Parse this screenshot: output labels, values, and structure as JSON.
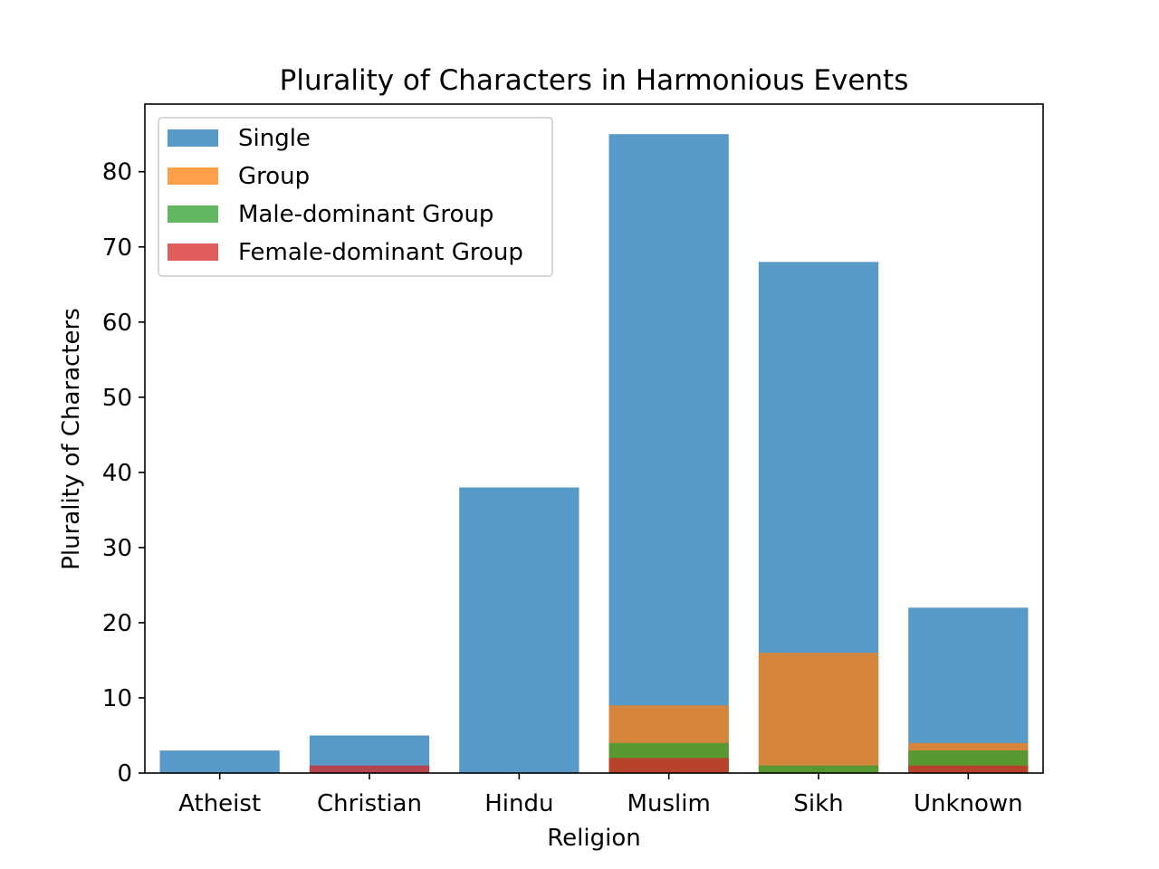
{
  "chart_data": {
    "type": "bar",
    "title": "Plurality of Characters in Harmonious Events",
    "xlabel": "Religion",
    "ylabel": "Plurality of Characters",
    "categories": [
      "Atheist",
      "Christian",
      "Hindu",
      "Muslim",
      "Sikh",
      "Unknown"
    ],
    "ylim": [
      0,
      89
    ],
    "yticks": [
      0,
      10,
      20,
      30,
      40,
      50,
      60,
      70,
      80
    ],
    "grid": false,
    "legend": "top-left",
    "bar_mode": "overlaid",
    "series": [
      {
        "name": "Single",
        "color": "#1f77b4",
        "values": [
          3,
          5,
          38,
          85,
          68,
          22
        ]
      },
      {
        "name": "Group",
        "color": "#ff7f0e",
        "values": [
          0,
          0,
          0,
          9,
          16,
          4
        ]
      },
      {
        "name": "Male-dominant Group",
        "color": "#2ca02c",
        "values": [
          0,
          0,
          0,
          4,
          1,
          3
        ]
      },
      {
        "name": "Female-dominant Group",
        "color": "#d62728",
        "values": [
          0,
          1,
          0,
          2,
          0,
          1
        ]
      }
    ]
  }
}
